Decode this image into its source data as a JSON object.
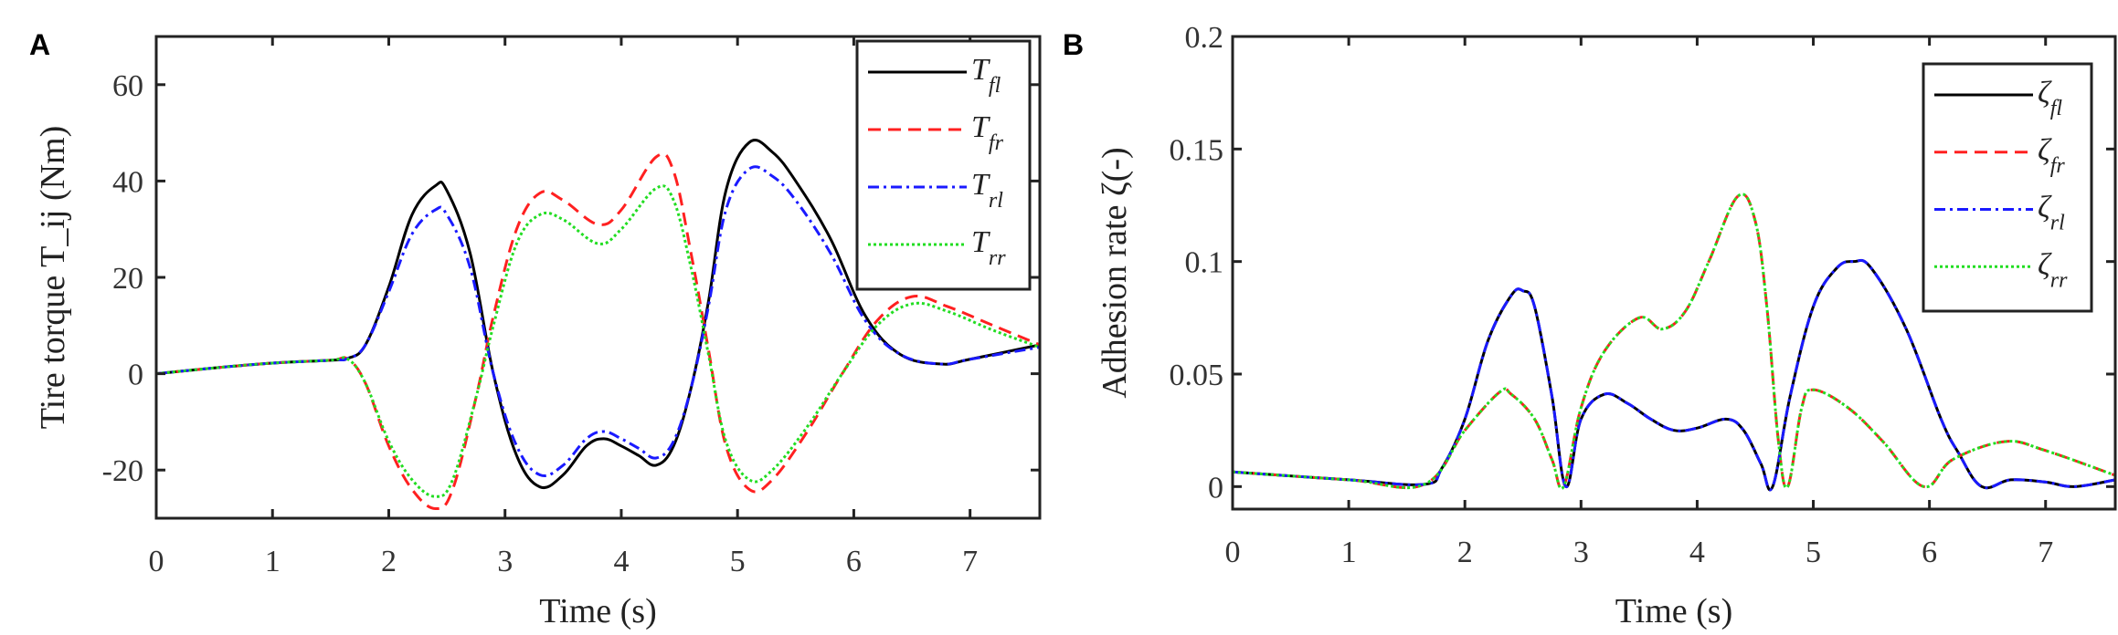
{
  "chart_data": [
    {
      "panel": "A",
      "type": "line",
      "xlabel": "Time (s)",
      "ylabel": "Tire torque T_ij (Nm)",
      "xlim": [
        0,
        7.6
      ],
      "ylim": [
        -30,
        70
      ],
      "xticks": [
        0,
        1,
        2,
        3,
        4,
        5,
        6,
        7
      ],
      "yticks": [
        -20,
        0,
        20,
        40,
        60
      ],
      "grid": false,
      "legend": "top-right",
      "series": [
        {
          "name": "T_fl",
          "color": "#000000",
          "dash": "solid",
          "x": [
            0,
            0.5,
            1,
            1.5,
            1.65,
            1.8,
            2,
            2.2,
            2.4,
            2.5,
            2.7,
            2.9,
            3.1,
            3.3,
            3.5,
            3.7,
            3.85,
            4,
            4.15,
            4.3,
            4.45,
            4.6,
            4.75,
            4.9,
            5.1,
            5.3,
            5.5,
            5.8,
            6.1,
            6.4,
            6.75,
            7,
            7.6
          ],
          "y": [
            0,
            1.2,
            2.2,
            2.8,
            3.2,
            6,
            18,
            33,
            39,
            38,
            25,
            0,
            -17,
            -23.5,
            -21,
            -15,
            -13.5,
            -15,
            -17,
            -19,
            -15,
            -3,
            15,
            38,
            48,
            46,
            40,
            28,
            12,
            4,
            2,
            3,
            6
          ]
        },
        {
          "name": "T_fr",
          "color": "#ff2020",
          "dash": "dashed",
          "x": [
            0,
            0.5,
            1,
            1.5,
            1.65,
            1.8,
            2,
            2.2,
            2.4,
            2.55,
            2.75,
            2.9,
            3.1,
            3.3,
            3.5,
            3.8,
            4,
            4.3,
            4.45,
            4.6,
            4.75,
            4.9,
            5.1,
            5.3,
            5.6,
            5.9,
            6.2,
            6.5,
            6.8,
            7.2,
            7.6
          ],
          "y": [
            0,
            1.2,
            2.2,
            2.8,
            3,
            -2,
            -15,
            -24,
            -28,
            -24,
            -5,
            12,
            30,
            37.5,
            36,
            31,
            34,
            45,
            42,
            25,
            5,
            -15,
            -24,
            -22,
            -12,
            0,
            11,
            16,
            14,
            10,
            6
          ]
        },
        {
          "name": "T_rl",
          "color": "#1a1aff",
          "dash": "dashdot",
          "x": [
            0,
            0.5,
            1,
            1.5,
            1.65,
            1.8,
            2,
            2.2,
            2.4,
            2.5,
            2.7,
            2.9,
            3.1,
            3.3,
            3.5,
            3.7,
            3.85,
            4,
            4.15,
            4.3,
            4.45,
            4.6,
            4.75,
            4.9,
            5.1,
            5.3,
            5.5,
            5.8,
            6.1,
            6.4,
            6.75,
            7,
            7.6
          ],
          "y": [
            0,
            1.2,
            2.2,
            2.8,
            3.2,
            6,
            17,
            29,
            34,
            33,
            22,
            0,
            -15,
            -21,
            -19,
            -13.5,
            -12,
            -13.5,
            -15.5,
            -17.5,
            -14,
            -3,
            14,
            34,
            42.5,
            41,
            36,
            25,
            11,
            4,
            2,
            3,
            5.5
          ]
        },
        {
          "name": "T_rr",
          "color": "#22dd22",
          "dash": "dotted",
          "x": [
            0,
            0.5,
            1,
            1.5,
            1.65,
            1.8,
            2,
            2.2,
            2.4,
            2.55,
            2.75,
            2.9,
            3.1,
            3.3,
            3.5,
            3.8,
            4,
            4.3,
            4.45,
            4.6,
            4.75,
            4.9,
            5.1,
            5.3,
            5.6,
            5.9,
            6.2,
            6.5,
            6.8,
            7.2,
            7.6
          ],
          "y": [
            0,
            1.2,
            2.2,
            2.8,
            3,
            -2,
            -14,
            -22,
            -25.5,
            -22,
            -5,
            10,
            27,
            33,
            32,
            27,
            30,
            38.5,
            36,
            22,
            4,
            -14,
            -22,
            -20,
            -11,
            0,
            10,
            14.5,
            13,
            9,
            5.5
          ]
        }
      ]
    },
    {
      "panel": "B",
      "type": "line",
      "xlabel": "Time (s)",
      "ylabel": "Adhesion rate ζ(-)",
      "xlim": [
        0,
        7.6
      ],
      "ylim": [
        -0.01,
        0.2
      ],
      "xticks": [
        0,
        1,
        2,
        3,
        4,
        5,
        6,
        7
      ],
      "yticks": [
        "0",
        "0.05",
        "0.1",
        "0.15",
        "0.2"
      ],
      "grid": false,
      "legend": "top-right",
      "series": [
        {
          "name": "ζ_fl",
          "color": "#000000",
          "dash": "solid",
          "x": [
            0,
            1,
            1.65,
            1.8,
            2,
            2.2,
            2.4,
            2.5,
            2.6,
            2.75,
            2.87,
            3,
            3.2,
            3.4,
            3.6,
            3.8,
            4,
            4.25,
            4.4,
            4.55,
            4.65,
            4.8,
            5,
            5.2,
            5.35,
            5.5,
            5.8,
            6.1,
            6.25,
            6.45,
            6.7,
            7,
            7.25,
            7.6
          ],
          "y": [
            0.0065,
            0.003,
            0.001,
            0.008,
            0.03,
            0.065,
            0.085,
            0.087,
            0.08,
            0.04,
            0,
            0.03,
            0.041,
            0.037,
            0.03,
            0.025,
            0.026,
            0.03,
            0.025,
            0.01,
            0,
            0.04,
            0.08,
            0.097,
            0.1,
            0.097,
            0.07,
            0.03,
            0.015,
            0,
            0.003,
            0.002,
            0,
            0.003
          ]
        },
        {
          "name": "ζ_fr",
          "color": "#ff2020",
          "dash": "dashed",
          "x": [
            0,
            1,
            1.65,
            2,
            2.3,
            2.4,
            2.6,
            2.75,
            2.85,
            3,
            3.2,
            3.5,
            3.7,
            3.9,
            4.1,
            4.35,
            4.5,
            4.6,
            4.7,
            4.78,
            4.9,
            5,
            5.3,
            5.6,
            5.95,
            6.2,
            6.65,
            7,
            7.6
          ],
          "y": [
            0.0065,
            0.003,
            0.001,
            0.025,
            0.042,
            0.041,
            0.03,
            0.012,
            0,
            0.035,
            0.06,
            0.075,
            0.07,
            0.078,
            0.1,
            0.129,
            0.118,
            0.08,
            0.02,
            0,
            0.035,
            0.043,
            0.035,
            0.02,
            0,
            0.012,
            0.02,
            0.016,
            0.005
          ]
        },
        {
          "name": "ζ_rl",
          "color": "#1a1aff",
          "dash": "dashdot",
          "x": [
            0,
            1,
            1.65,
            1.8,
            2,
            2.2,
            2.4,
            2.5,
            2.6,
            2.75,
            2.87,
            3,
            3.2,
            3.4,
            3.6,
            3.8,
            4,
            4.25,
            4.4,
            4.55,
            4.65,
            4.8,
            5,
            5.2,
            5.35,
            5.5,
            5.8,
            6.1,
            6.25,
            6.45,
            6.7,
            7,
            7.25,
            7.6
          ],
          "y": [
            0.0065,
            0.003,
            0.001,
            0.008,
            0.03,
            0.065,
            0.085,
            0.087,
            0.08,
            0.04,
            0,
            0.03,
            0.041,
            0.037,
            0.03,
            0.025,
            0.026,
            0.03,
            0.025,
            0.01,
            0,
            0.04,
            0.08,
            0.097,
            0.1,
            0.097,
            0.07,
            0.03,
            0.015,
            0,
            0.003,
            0.002,
            0,
            0.003
          ]
        },
        {
          "name": "ζ_rr",
          "color": "#22dd22",
          "dash": "dotted",
          "x": [
            0,
            1,
            1.65,
            2,
            2.3,
            2.4,
            2.6,
            2.75,
            2.85,
            3,
            3.2,
            3.5,
            3.7,
            3.9,
            4.1,
            4.35,
            4.5,
            4.6,
            4.7,
            4.78,
            4.9,
            5,
            5.3,
            5.6,
            5.95,
            6.2,
            6.65,
            7,
            7.6
          ],
          "y": [
            0.0065,
            0.003,
            0.001,
            0.025,
            0.042,
            0.041,
            0.03,
            0.012,
            0,
            0.035,
            0.06,
            0.075,
            0.07,
            0.078,
            0.1,
            0.129,
            0.118,
            0.08,
            0.02,
            0,
            0.035,
            0.043,
            0.035,
            0.02,
            0,
            0.012,
            0.02,
            0.016,
            0.005
          ]
        }
      ]
    }
  ]
}
